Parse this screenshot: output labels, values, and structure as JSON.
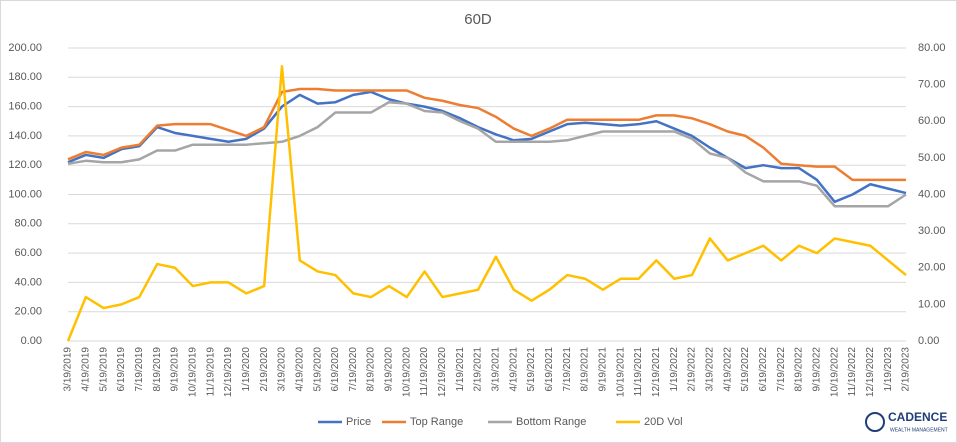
{
  "chart_data": {
    "type": "line",
    "title": "60D",
    "categories": [
      "3/19/2019",
      "4/19/2019",
      "5/19/2019",
      "6/19/2019",
      "7/19/2019",
      "8/19/2019",
      "9/19/2019",
      "10/19/2019",
      "11/19/2019",
      "12/19/2019",
      "1/19/2020",
      "2/19/2020",
      "3/19/2020",
      "4/19/2020",
      "5/19/2020",
      "6/19/2020",
      "7/19/2020",
      "8/19/2020",
      "9/19/2020",
      "10/19/2020",
      "11/19/2020",
      "12/19/2020",
      "1/19/2021",
      "2/19/2021",
      "3/19/2021",
      "4/19/2021",
      "5/19/2021",
      "6/19/2021",
      "7/19/2021",
      "8/19/2021",
      "9/19/2021",
      "10/19/2021",
      "11/19/2021",
      "12/19/2021",
      "1/19/2022",
      "2/19/2022",
      "3/19/2022",
      "4/19/2022",
      "5/19/2022",
      "6/19/2022",
      "7/19/2022",
      "8/19/2022",
      "9/19/2022",
      "10/19/2022",
      "11/19/2022",
      "12/19/2022",
      "1/19/2023",
      "2/19/2023"
    ],
    "series": [
      {
        "name": "Price",
        "color": "#4472c4",
        "values": [
          122,
          127,
          125,
          131,
          133,
          146,
          142,
          140,
          138,
          136,
          138,
          145,
          160,
          168,
          162,
          163,
          168,
          170,
          165,
          162,
          160,
          157,
          152,
          146,
          141,
          137,
          138,
          143,
          148,
          149,
          148,
          147,
          148,
          150,
          145,
          140,
          132,
          125,
          118,
          120,
          118,
          118,
          110,
          95,
          100,
          107,
          104,
          101
        ]
      },
      {
        "name": "Top Range",
        "color": "#ed7d31",
        "values": [
          124,
          129,
          127,
          132,
          134,
          147,
          148,
          148,
          148,
          144,
          140,
          146,
          170,
          172,
          172,
          171,
          171,
          171,
          171,
          171,
          166,
          164,
          161,
          159,
          153,
          145,
          140,
          145,
          151,
          151,
          151,
          151,
          151,
          154,
          154,
          152,
          148,
          143,
          140,
          132,
          121,
          120,
          119,
          119,
          110,
          110,
          110,
          110
        ]
      },
      {
        "name": "Bottom Range",
        "color": "#a5a5a5",
        "values": [
          121,
          123,
          122,
          122,
          124,
          130,
          130,
          134,
          134,
          134,
          134,
          135,
          136,
          140,
          146,
          156,
          156,
          156,
          163,
          162,
          157,
          156,
          150,
          145,
          136,
          136,
          136,
          136,
          137,
          140,
          143,
          143,
          143,
          143,
          143,
          138,
          128,
          125,
          115,
          109,
          109,
          109,
          106,
          92,
          92,
          92,
          92,
          100
        ]
      },
      {
        "name": "20D Vol",
        "color": "#ffc000",
        "axis": "y2",
        "values": [
          0,
          12,
          9,
          10,
          12,
          21,
          20,
          15,
          16,
          16,
          13,
          15,
          75,
          22,
          19,
          18,
          13,
          12,
          15,
          12,
          19,
          12,
          13,
          14,
          23,
          14,
          11,
          14,
          18,
          17,
          14,
          17,
          17,
          22,
          17,
          18,
          28,
          22,
          24,
          26,
          22,
          26,
          24,
          28,
          27,
          26,
          22,
          18
        ]
      }
    ],
    "ylim": [
      0,
      200
    ],
    "yticks": [
      {
        "value": 0,
        "label": "0.00"
      },
      {
        "value": 20,
        "label": "20.00"
      },
      {
        "value": 40,
        "label": "40.00"
      },
      {
        "value": 60,
        "label": "60.00"
      },
      {
        "value": 80,
        "label": "80.00"
      },
      {
        "value": 100,
        "label": "100.00"
      },
      {
        "value": 120,
        "label": "120.00"
      },
      {
        "value": 140,
        "label": "140.00"
      },
      {
        "value": 160,
        "label": "160.00"
      },
      {
        "value": 180,
        "label": "180.00"
      },
      {
        "value": 200,
        "label": "200.00"
      }
    ],
    "y2lim": [
      0,
      80
    ],
    "y2ticks": [
      {
        "value": 0,
        "label": "0.00"
      },
      {
        "value": 10,
        "label": "10.00"
      },
      {
        "value": 20,
        "label": "20.00"
      },
      {
        "value": 30,
        "label": "30.00"
      },
      {
        "value": 40,
        "label": "40.00"
      },
      {
        "value": 50,
        "label": "50.00"
      },
      {
        "value": 60,
        "label": "60.00"
      },
      {
        "value": 70,
        "label": "70.00"
      },
      {
        "value": 80,
        "label": "80.00"
      }
    ],
    "grid": true,
    "legend": "bottom"
  },
  "logo": {
    "name": "CADENCE",
    "tagline": "WEALTH MANAGEMENT"
  }
}
